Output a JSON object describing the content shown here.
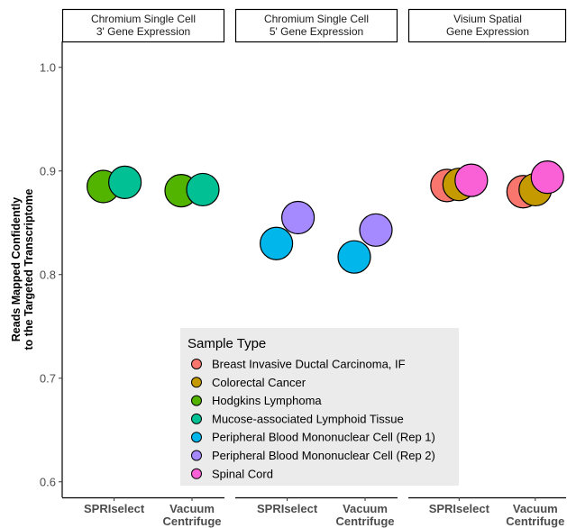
{
  "chart_data": {
    "type": "scatter",
    "ylabel_lines": [
      "Reads Mapped Confidently",
      "to the Targeted Transcriptome"
    ],
    "ylim": [
      0.585,
      1.025
    ],
    "yticks": [
      0.6,
      0.7,
      0.8,
      0.9,
      1.0
    ],
    "ytick_labels": [
      "0.6",
      "0.7",
      "0.8",
      "0.9",
      "1.0"
    ],
    "grid": false,
    "legend_position": "bottom-center (inside)",
    "facets": [
      {
        "title_lines": [
          "Chromium Single Cell",
          "3' Gene Expression"
        ],
        "categories": [
          [
            "SPRIselect"
          ],
          [
            "Vacuum",
            "Centrifuge"
          ]
        ],
        "points": [
          {
            "category": 0,
            "series": "Hodgkins Lymphoma",
            "y": 0.885
          },
          {
            "category": 0,
            "series": "Mucose-associated Lymphoid Tissue",
            "y": 0.889
          },
          {
            "category": 1,
            "series": "Hodgkins Lymphoma",
            "y": 0.881
          },
          {
            "category": 1,
            "series": "Mucose-associated Lymphoid Tissue",
            "y": 0.882
          }
        ]
      },
      {
        "title_lines": [
          "Chromium Single Cell",
          "5' Gene Expression"
        ],
        "categories": [
          [
            "SPRIselect"
          ],
          [
            "Vacuum",
            "Centrifuge"
          ]
        ],
        "points": [
          {
            "category": 0,
            "series": "Peripheral Blood Mononuclear Cell (Rep 1)",
            "y": 0.83
          },
          {
            "category": 0,
            "series": "Peripheral Blood Mononuclear Cell (Rep 2)",
            "y": 0.855
          },
          {
            "category": 1,
            "series": "Peripheral Blood Mononuclear Cell (Rep 1)",
            "y": 0.817
          },
          {
            "category": 1,
            "series": "Peripheral Blood Mononuclear Cell (Rep 2)",
            "y": 0.843
          }
        ]
      },
      {
        "title_lines": [
          "Visium Spatial",
          "Gene Expression"
        ],
        "categories": [
          [
            "SPRIselect"
          ],
          [
            "Vacuum",
            "Centrifuge"
          ]
        ],
        "points": [
          {
            "category": 0,
            "series": "Breast Invasive Ductal Carcinoma, IF",
            "y": 0.886
          },
          {
            "category": 0,
            "series": "Colorectal Cancer",
            "y": 0.887
          },
          {
            "category": 0,
            "series": "Spinal Cord",
            "y": 0.891
          },
          {
            "category": 1,
            "series": "Breast Invasive Ductal Carcinoma, IF",
            "y": 0.88
          },
          {
            "category": 1,
            "series": "Colorectal Cancer",
            "y": 0.882
          },
          {
            "category": 1,
            "series": "Spinal Cord",
            "y": 0.894
          }
        ]
      }
    ],
    "legend": {
      "title": "Sample Type",
      "items": [
        {
          "name": "Breast Invasive Ductal Carcinoma, IF",
          "color": "#F8766D"
        },
        {
          "name": "Colorectal Cancer",
          "color": "#C49A00"
        },
        {
          "name": "Hodgkins Lymphoma",
          "color": "#53B400"
        },
        {
          "name": "Mucose-associated Lymphoid Tissue",
          "color": "#00C094"
        },
        {
          "name": "Peripheral Blood Mononuclear Cell (Rep 1)",
          "color": "#00B6EB"
        },
        {
          "name": "Peripheral Blood Mononuclear Cell (Rep 2)",
          "color": "#A58AFF"
        },
        {
          "name": "Spinal Cord",
          "color": "#FB61D7"
        }
      ]
    }
  }
}
